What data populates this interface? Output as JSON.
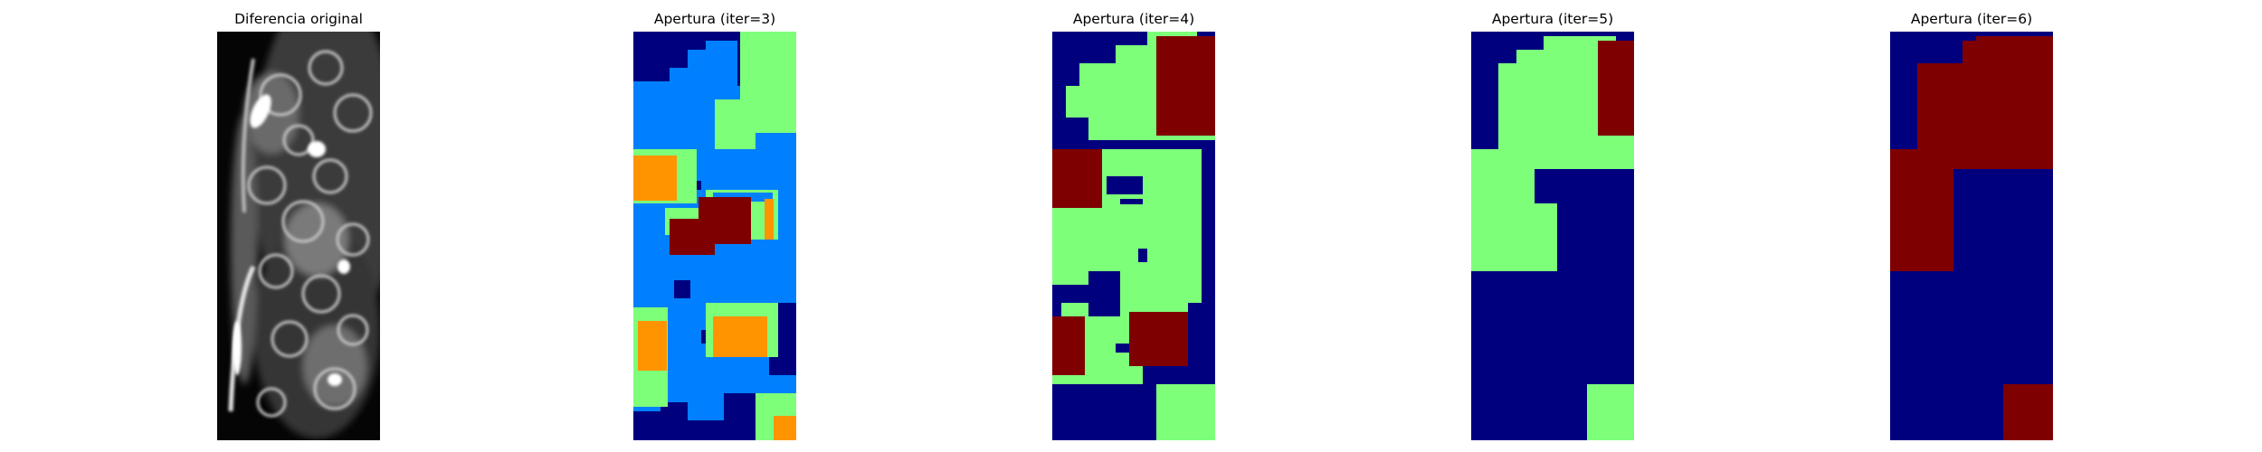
{
  "figure": {
    "panels": [
      {
        "title": "Diferencia original",
        "kind": "grayscale image (difference map)"
      },
      {
        "title": "Apertura (iter=3)",
        "kind": "segmentation map",
        "colormap": "jet"
      },
      {
        "title": "Apertura (iter=4)",
        "kind": "segmentation map",
        "colormap": "jet"
      },
      {
        "title": "Apertura (iter=5)",
        "kind": "segmentation map",
        "colormap": "jet"
      },
      {
        "title": "Apertura (iter=6)",
        "kind": "segmentation map",
        "colormap": "jet"
      }
    ],
    "colors": {
      "navy": "#00007f",
      "blue": "#0080ff",
      "green": "#7dff7a",
      "orange": "#ff9400",
      "darkred": "#7f0000"
    }
  }
}
